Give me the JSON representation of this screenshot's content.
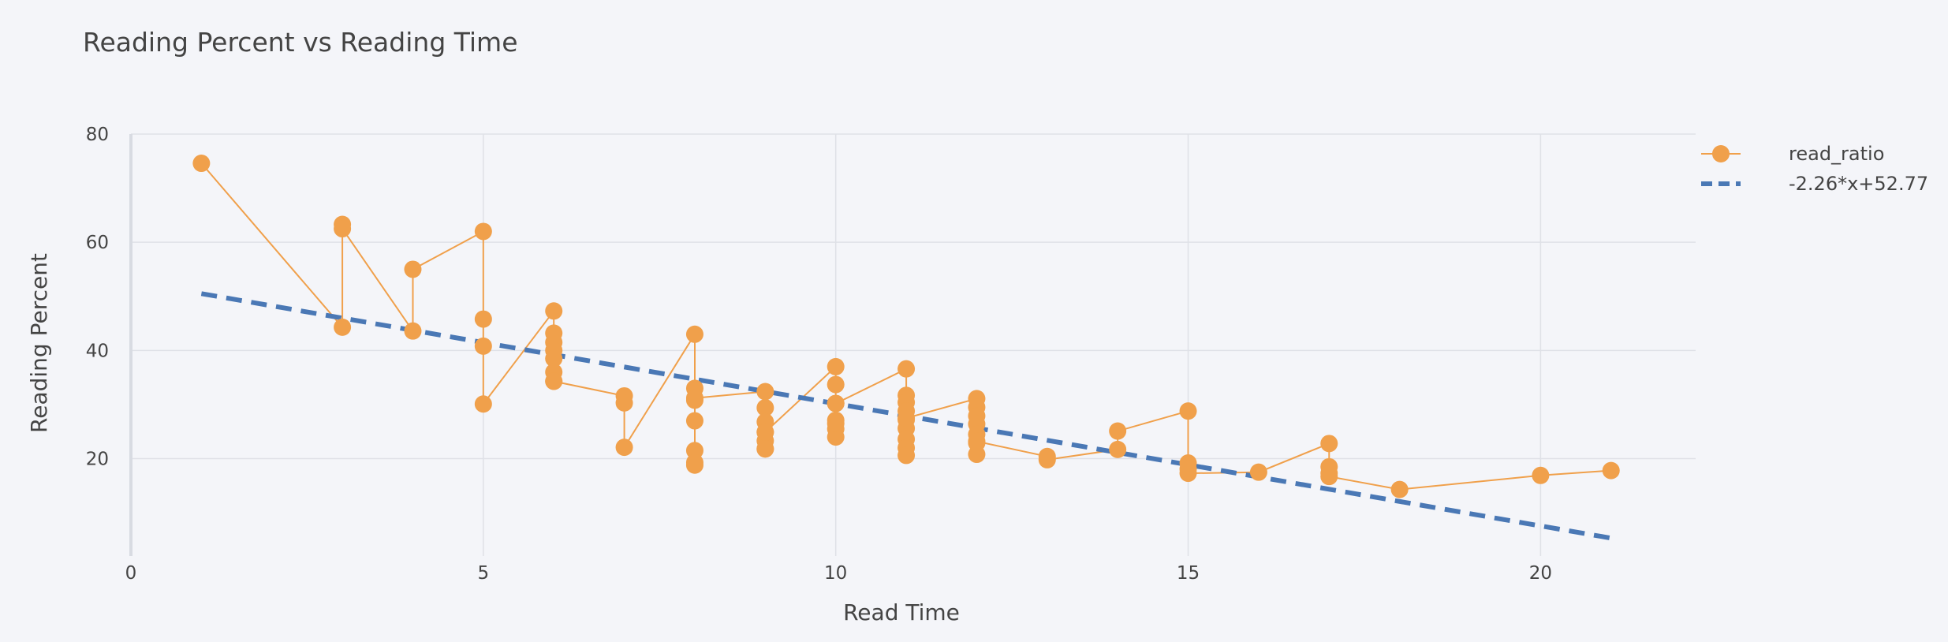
{
  "chart_data": {
    "type": "scatter",
    "title": "Reading Percent vs Reading Time",
    "xlabel": "Read Time",
    "ylabel": "Reading Percent",
    "xlim": [
      0,
      22.2
    ],
    "ylim": [
      2,
      80
    ],
    "x_ticks": [
      0,
      5,
      10,
      15,
      20
    ],
    "y_ticks": [
      20,
      40,
      60,
      80
    ],
    "grid": true,
    "legend_position": "top-right",
    "colors": {
      "points": "#f0a04b",
      "trend": "#4a78b5",
      "background": "#f4f5f9",
      "grid": "#dfe1e7"
    },
    "series": [
      {
        "name": "read_ratio",
        "mode": "lines+markers",
        "x": [
          1,
          3,
          3,
          3,
          4,
          4,
          5,
          5,
          5,
          5,
          6,
          6,
          6,
          6,
          6,
          6,
          6,
          6,
          7,
          7,
          7,
          8,
          8,
          8,
          8,
          8,
          8,
          8,
          8,
          9,
          9,
          9,
          9,
          9,
          9,
          9,
          9,
          10,
          10,
          10,
          10,
          10,
          10,
          10,
          10,
          11,
          11,
          11,
          11,
          11,
          11,
          11,
          11,
          11,
          11,
          12,
          12,
          12,
          12,
          12,
          12,
          12,
          12,
          13,
          13,
          14,
          14,
          15,
          15,
          15,
          15,
          16,
          17,
          17,
          17,
          17,
          18,
          20,
          21
        ],
        "y": [
          74.6,
          44.3,
          63.3,
          62.5,
          43.6,
          55,
          62,
          45.8,
          40.8,
          30.1,
          47.3,
          43.2,
          41.5,
          40,
          38.5,
          36,
          34.3,
          34.3,
          31.6,
          30.3,
          22.1,
          43,
          33,
          30.8,
          27,
          21.5,
          18.8,
          19.3,
          31.2,
          32.4,
          29.4,
          26.8,
          24.9,
          23.3,
          21.8,
          21.8,
          24.9,
          37,
          33.7,
          30.2,
          27.1,
          25.5,
          24,
          26.5,
          30.2,
          36.6,
          31.7,
          30.4,
          28.8,
          27.2,
          25.6,
          23.6,
          22,
          20.6,
          27.5,
          31.1,
          29.5,
          27.9,
          26.4,
          24.5,
          22.9,
          20.8,
          23.2,
          20.4,
          19.8,
          21.7,
          25.1,
          28.8,
          19.2,
          18.1,
          17.3,
          17.5,
          22.8,
          18.5,
          17.3,
          16.7,
          14.3,
          16.9,
          17.8
        ]
      },
      {
        "name": "-2.26*x+52.77",
        "mode": "lines",
        "dash": "dash",
        "x": [
          1,
          21
        ],
        "y": [
          50.51,
          5.31
        ]
      }
    ]
  }
}
